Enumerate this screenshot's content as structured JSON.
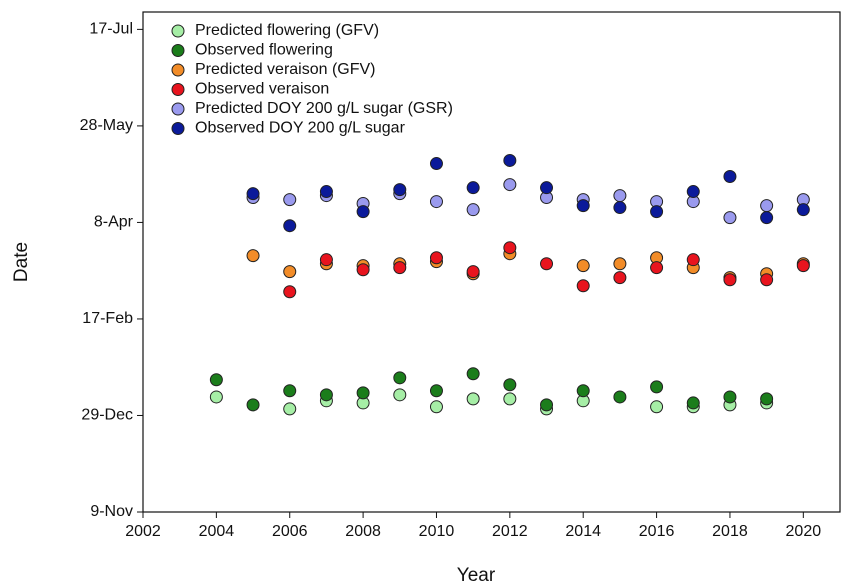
{
  "chart_data": {
    "type": "scatter",
    "x_label": "Year",
    "y_label": "Date",
    "xlim": [
      2002,
      2021
    ],
    "xticks": [
      2002,
      2004,
      2006,
      2008,
      2010,
      2012,
      2014,
      2016,
      2018,
      2020
    ],
    "ylim": [
      0,
      259
    ],
    "yticks": [
      {
        "value": 0,
        "label": "9-Nov"
      },
      {
        "value": 50,
        "label": "29-Dec"
      },
      {
        "value": 100,
        "label": "17-Feb"
      },
      {
        "value": 150,
        "label": "8-Apr"
      },
      {
        "value": 200,
        "label": "28-May"
      },
      {
        "value": 250,
        "label": "17-Jul"
      }
    ],
    "x": [
      2004,
      2005,
      2006,
      2007,
      2008,
      2009,
      2010,
      2011,
      2012,
      2013,
      2014,
      2015,
      2016,
      2017,
      2018,
      2019,
      2020
    ],
    "legend": "upper left",
    "series": [
      {
        "name": "Predicted flowering (GFV)",
        "color": "#a6eea6",
        "values": [
          59.6,
          null,
          53.4,
          57.6,
          56.5,
          60.7,
          54.5,
          58.6,
          58.6,
          53.4,
          57.6,
          null,
          54.5,
          54.5,
          55.5,
          56.5,
          null
        ]
      },
      {
        "name": "Observed flowering",
        "color": "#1b7d1b",
        "values": [
          68.5,
          55.5,
          62.8,
          60.7,
          61.7,
          69.5,
          62.8,
          71.6,
          65.9,
          55.5,
          62.8,
          59.6,
          64.8,
          56.5,
          59.6,
          58.6,
          null
        ]
      },
      {
        "name": "Predicted veraison (GFV)",
        "color": "#f28c28",
        "values": [
          null,
          132.8,
          124.5,
          128.6,
          127.6,
          128.6,
          129.7,
          123.4,
          133.8,
          null,
          127.6,
          128.6,
          131.7,
          126.6,
          121.4,
          123.4,
          128.6
        ]
      },
      {
        "name": "Observed veraison",
        "color": "#e8141e",
        "values": [
          null,
          null,
          114.1,
          130.7,
          125.5,
          126.6,
          131.7,
          124.5,
          136.9,
          128.6,
          117.2,
          121.4,
          126.6,
          130.7,
          120.3,
          120.3,
          127.6
        ]
      },
      {
        "name": "Predicted DOY 200 g/L sugar (GSR)",
        "color": "#9a9aee",
        "values": [
          null,
          162.9,
          161.8,
          163.9,
          159.8,
          164.9,
          160.8,
          156.6,
          169.6,
          162.9,
          161.8,
          163.9,
          160.8,
          160.8,
          152.5,
          158.7,
          161.8
        ]
      },
      {
        "name": "Observed DOY 200 g/L sugar",
        "color": "#0b1a9a",
        "values": [
          null,
          164.9,
          148.3,
          166.0,
          155.6,
          167.0,
          180.5,
          168.0,
          182.1,
          168.0,
          158.7,
          157.7,
          155.6,
          166.0,
          173.8,
          152.5,
          156.6
        ]
      }
    ]
  }
}
